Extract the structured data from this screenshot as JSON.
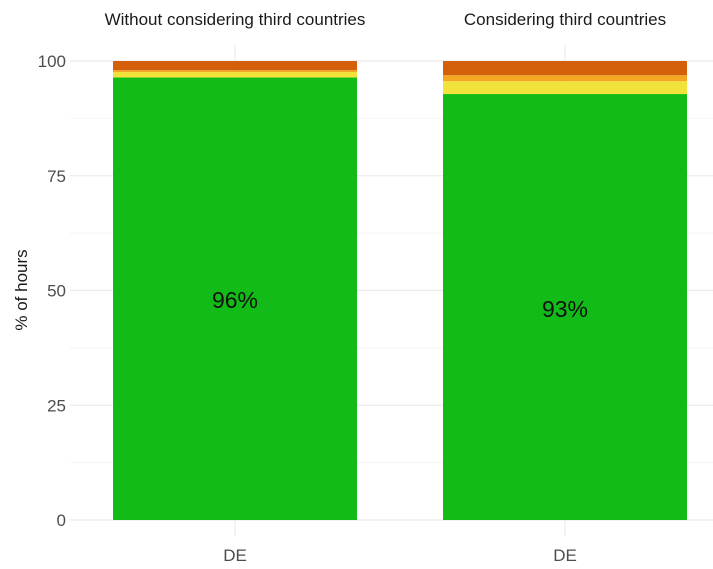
{
  "chart_data": {
    "type": "bar",
    "stacked": true,
    "ylabel": "% of hours",
    "ylim": [
      0,
      100
    ],
    "yticks": [
      "0",
      "25",
      "50",
      "75",
      "100"
    ],
    "grid": true,
    "legend": "none",
    "colors": {
      "green": "#12bb18",
      "yellow": "#f2e33a",
      "orange": "#f5a623",
      "red": "#d35f0a"
    },
    "facets": [
      {
        "title": "Without considering third countries",
        "categories": [
          "DE"
        ],
        "segments": [
          {
            "color": "#12bb18",
            "value": 96.4
          },
          {
            "color": "#f2e33a",
            "value": 1.2
          },
          {
            "color": "#f5a623",
            "value": 0.4
          },
          {
            "color": "#d35f0a",
            "value": 2.0
          }
        ],
        "label": "96%"
      },
      {
        "title": "Considering third countries",
        "categories": [
          "DE"
        ],
        "segments": [
          {
            "color": "#12bb18",
            "value": 92.8
          },
          {
            "color": "#f2e33a",
            "value": 2.8
          },
          {
            "color": "#f5a623",
            "value": 1.3
          },
          {
            "color": "#d35f0a",
            "value": 3.1
          }
        ],
        "label": "93%"
      }
    ]
  }
}
